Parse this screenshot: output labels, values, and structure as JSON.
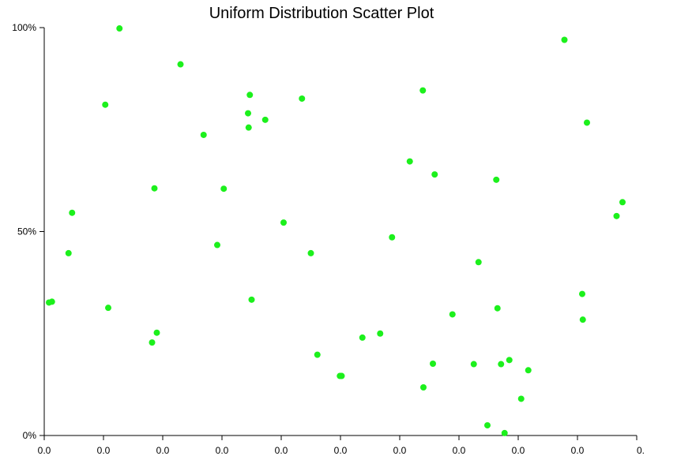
{
  "chart_data": {
    "type": "scatter",
    "title": "Uniform Distribution Scatter Plot",
    "xlabel": "",
    "ylabel": "",
    "xlim": [
      0,
      1
    ],
    "ylim": [
      0,
      1
    ],
    "x_tick_labels": [
      "0.0",
      "0.0",
      "0.0",
      "0.0",
      "0.0",
      "0.0",
      "0.0",
      "0.0",
      "0.0",
      "0.0",
      "0."
    ],
    "y_tick_labels": [
      "0%",
      "50%",
      "100%"
    ],
    "y_ticks": [
      0,
      0.5,
      1
    ],
    "point_color": "#1cf01c",
    "grid": false,
    "points": [
      {
        "x": 0.008,
        "y": 0.326
      },
      {
        "x": 0.013,
        "y": 0.328
      },
      {
        "x": 0.041,
        "y": 0.447
      },
      {
        "x": 0.047,
        "y": 0.546
      },
      {
        "x": 0.103,
        "y": 0.811
      },
      {
        "x": 0.108,
        "y": 0.313
      },
      {
        "x": 0.127,
        "y": 0.998
      },
      {
        "x": 0.182,
        "y": 0.228
      },
      {
        "x": 0.186,
        "y": 0.606
      },
      {
        "x": 0.19,
        "y": 0.252
      },
      {
        "x": 0.23,
        "y": 0.91
      },
      {
        "x": 0.269,
        "y": 0.737
      },
      {
        "x": 0.292,
        "y": 0.467
      },
      {
        "x": 0.303,
        "y": 0.605
      },
      {
        "x": 0.344,
        "y": 0.79
      },
      {
        "x": 0.345,
        "y": 0.755
      },
      {
        "x": 0.347,
        "y": 0.835
      },
      {
        "x": 0.35,
        "y": 0.333
      },
      {
        "x": 0.373,
        "y": 0.774
      },
      {
        "x": 0.404,
        "y": 0.522
      },
      {
        "x": 0.435,
        "y": 0.826
      },
      {
        "x": 0.45,
        "y": 0.447
      },
      {
        "x": 0.461,
        "y": 0.198
      },
      {
        "x": 0.499,
        "y": 0.146
      },
      {
        "x": 0.502,
        "y": 0.146
      },
      {
        "x": 0.537,
        "y": 0.24
      },
      {
        "x": 0.567,
        "y": 0.25
      },
      {
        "x": 0.587,
        "y": 0.486
      },
      {
        "x": 0.617,
        "y": 0.672
      },
      {
        "x": 0.639,
        "y": 0.846
      },
      {
        "x": 0.64,
        "y": 0.118
      },
      {
        "x": 0.656,
        "y": 0.176
      },
      {
        "x": 0.659,
        "y": 0.64
      },
      {
        "x": 0.689,
        "y": 0.297
      },
      {
        "x": 0.725,
        "y": 0.175
      },
      {
        "x": 0.733,
        "y": 0.425
      },
      {
        "x": 0.748,
        "y": 0.025
      },
      {
        "x": 0.763,
        "y": 0.627
      },
      {
        "x": 0.765,
        "y": 0.312
      },
      {
        "x": 0.771,
        "y": 0.175
      },
      {
        "x": 0.777,
        "y": 0.006
      },
      {
        "x": 0.785,
        "y": 0.185
      },
      {
        "x": 0.805,
        "y": 0.09
      },
      {
        "x": 0.817,
        "y": 0.16
      },
      {
        "x": 0.878,
        "y": 0.97
      },
      {
        "x": 0.908,
        "y": 0.347
      },
      {
        "x": 0.909,
        "y": 0.284
      },
      {
        "x": 0.916,
        "y": 0.767
      },
      {
        "x": 0.966,
        "y": 0.538
      },
      {
        "x": 0.976,
        "y": 0.572
      }
    ]
  }
}
